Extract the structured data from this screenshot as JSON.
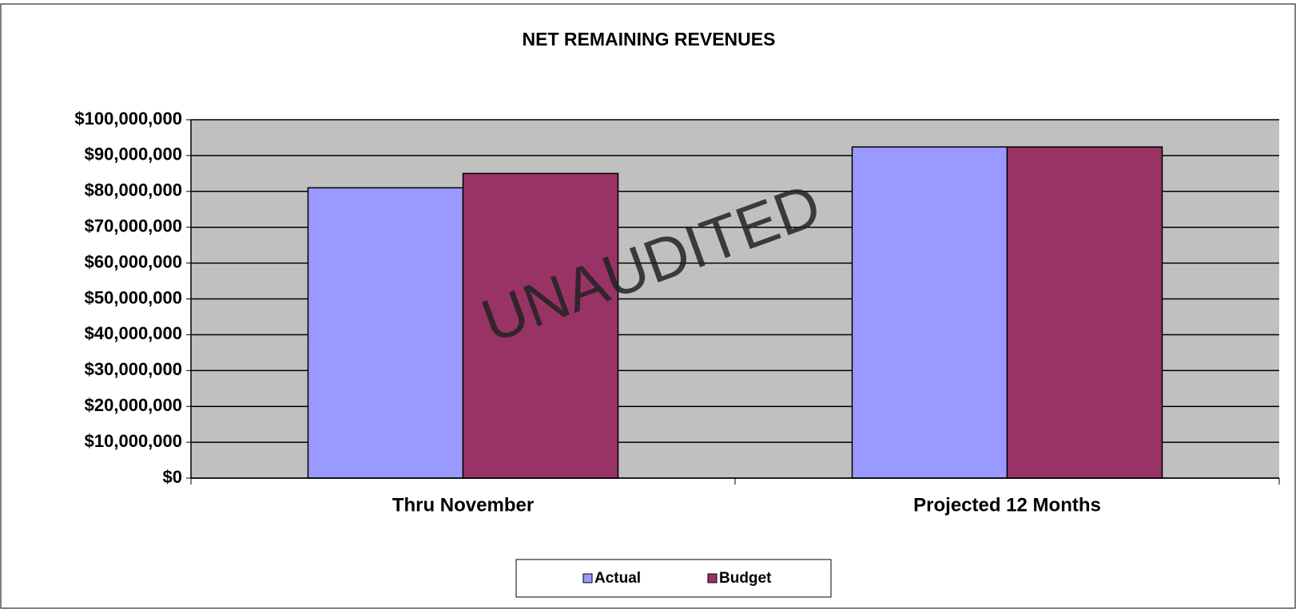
{
  "chart_data": {
    "type": "bar",
    "title": "NET REMAINING REVENUES",
    "categories": [
      "Thru November",
      "Projected 12 Months"
    ],
    "series": [
      {
        "name": "Actual",
        "color": "#9999ff",
        "values": [
          81000000,
          92400000
        ]
      },
      {
        "name": "Budget",
        "color": "#993366",
        "values": [
          85000000,
          92400000
        ]
      }
    ],
    "ylim": [
      0,
      100000000
    ],
    "yticks": [
      {
        "value": 0,
        "label": "$0"
      },
      {
        "value": 10000000,
        "label": "$10,000,000"
      },
      {
        "value": 20000000,
        "label": "$20,000,000"
      },
      {
        "value": 30000000,
        "label": "$30,000,000"
      },
      {
        "value": 40000000,
        "label": "$40,000,000"
      },
      {
        "value": 50000000,
        "label": "$50,000,000"
      },
      {
        "value": 60000000,
        "label": "$60,000,000"
      },
      {
        "value": 70000000,
        "label": "$70,000,000"
      },
      {
        "value": 80000000,
        "label": "$80,000,000"
      },
      {
        "value": 90000000,
        "label": "$90,000,000"
      },
      {
        "value": 100000000,
        "label": "$100,000,000"
      }
    ],
    "grid": true,
    "legend": "bottom",
    "annotations": [
      "UNAUDITED"
    ]
  }
}
